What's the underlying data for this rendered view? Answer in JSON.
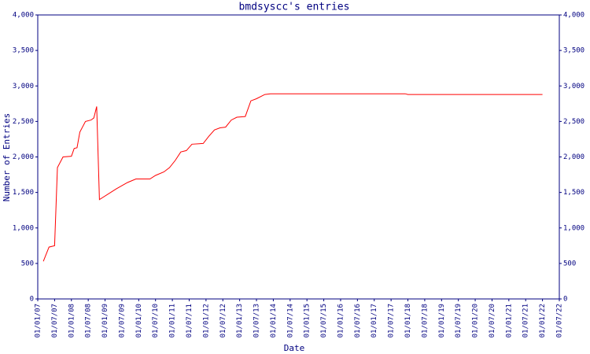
{
  "chart_data": {
    "type": "line",
    "title": "bmdsyscc's entries",
    "x_label": "Date",
    "y_label": "Number of Entries",
    "x": [
      "2007-03",
      "2007-05",
      "2007-07",
      "2007-08",
      "2007-10",
      "2008-01",
      "2008-02",
      "2008-03",
      "2008-04",
      "2008-06",
      "2008-08",
      "2008-09",
      "2008-10",
      "2008-11",
      "2009-05",
      "2009-09",
      "2009-12",
      "2010-05",
      "2010-07",
      "2010-10",
      "2010-12",
      "2011-02",
      "2011-04",
      "2011-06",
      "2011-08",
      "2011-12",
      "2012-02",
      "2012-04",
      "2012-06",
      "2012-08",
      "2012-10",
      "2012-12",
      "2013-03",
      "2013-05",
      "2013-07",
      "2013-10",
      "2013-12",
      "2017-12",
      "2018-01",
      "2022-01"
    ],
    "series": [
      {
        "name": "entries",
        "color": "#ff0000",
        "values": [
          530,
          730,
          750,
          1850,
          2000,
          2010,
          2120,
          2130,
          2350,
          2500,
          2520,
          2550,
          2710,
          1400,
          1550,
          1640,
          1690,
          1690,
          1740,
          1790,
          1850,
          1950,
          2070,
          2090,
          2180,
          2190,
          2290,
          2380,
          2410,
          2420,
          2520,
          2560,
          2570,
          2790,
          2820,
          2880,
          2890,
          2890,
          2880,
          2880
        ]
      }
    ],
    "xlim": [
      "2007-01",
      "2022-07"
    ],
    "xticks": [
      {
        "value": "2007-01",
        "label": "01/01/07"
      },
      {
        "value": "2007-07",
        "label": "01/07/07"
      },
      {
        "value": "2008-01",
        "label": "01/01/08"
      },
      {
        "value": "2008-07",
        "label": "01/07/08"
      },
      {
        "value": "2009-01",
        "label": "01/01/09"
      },
      {
        "value": "2009-07",
        "label": "01/07/09"
      },
      {
        "value": "2010-01",
        "label": "01/01/10"
      },
      {
        "value": "2010-07",
        "label": "01/07/10"
      },
      {
        "value": "2011-01",
        "label": "01/01/11"
      },
      {
        "value": "2011-07",
        "label": "01/07/11"
      },
      {
        "value": "2012-01",
        "label": "01/01/12"
      },
      {
        "value": "2012-07",
        "label": "01/07/12"
      },
      {
        "value": "2013-01",
        "label": "01/01/13"
      },
      {
        "value": "2013-07",
        "label": "01/07/13"
      },
      {
        "value": "2014-01",
        "label": "01/01/14"
      },
      {
        "value": "2014-07",
        "label": "01/07/14"
      },
      {
        "value": "2015-01",
        "label": "01/01/15"
      },
      {
        "value": "2015-07",
        "label": "01/07/15"
      },
      {
        "value": "2016-01",
        "label": "01/01/16"
      },
      {
        "value": "2016-07",
        "label": "01/07/16"
      },
      {
        "value": "2017-01",
        "label": "01/01/17"
      },
      {
        "value": "2017-07",
        "label": "01/07/17"
      },
      {
        "value": "2018-01",
        "label": "01/01/18"
      },
      {
        "value": "2018-07",
        "label": "01/07/18"
      },
      {
        "value": "2019-01",
        "label": "01/01/19"
      },
      {
        "value": "2019-07",
        "label": "01/07/19"
      },
      {
        "value": "2020-01",
        "label": "01/01/20"
      },
      {
        "value": "2020-07",
        "label": "01/07/20"
      },
      {
        "value": "2021-01",
        "label": "01/01/21"
      },
      {
        "value": "2021-07",
        "label": "01/07/21"
      },
      {
        "value": "2022-01",
        "label": "01/01/22"
      },
      {
        "value": "2022-07",
        "label": "01/07/22"
      }
    ],
    "ylim": [
      0,
      4000
    ],
    "yticks": [
      0,
      500,
      {
        "value": 1000,
        "label": "1,000"
      },
      {
        "value": 1500,
        "label": "1,500"
      },
      {
        "value": 2000,
        "label": "2,000"
      },
      {
        "value": 2500,
        "label": "2,500"
      },
      {
        "value": 3000,
        "label": "3,000"
      },
      {
        "value": 3500,
        "label": "3,500"
      },
      {
        "value": 4000,
        "label": "4,000"
      }
    ],
    "grid": false
  }
}
